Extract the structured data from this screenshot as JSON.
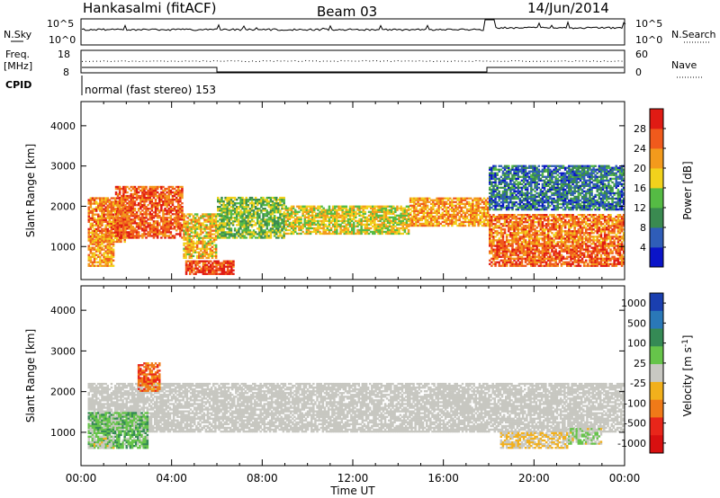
{
  "header": {
    "radar": "Hankasalmi (fitACF)",
    "beam": "Beam 03",
    "date": "14/Jun/2014"
  },
  "noise_panel": {
    "left_label": "N.Sky",
    "right_label": "N.Search",
    "left_ticks": [
      "10^5",
      "10^0"
    ],
    "right_ticks": [
      "10^5",
      "10^0"
    ]
  },
  "freq_panel": {
    "left_label_1": "Freq.",
    "left_label_2": "[MHz]",
    "right_label": "Nave",
    "left_ticks": [
      "18",
      "8"
    ],
    "right_ticks": [
      "60",
      "0"
    ]
  },
  "cpid": {
    "label": "CPID",
    "mode": "normal (fast stereo) 153"
  },
  "colors": {
    "power": [
      "#0a14c8",
      "#2f5db8",
      "#3a8a50",
      "#55bb44",
      "#f2d21c",
      "#f39a1c",
      "#f05a1c",
      "#e01b14"
    ],
    "velocity": [
      "#1a3fb0",
      "#2a78b8",
      "#358a55",
      "#66c44a",
      "#c8c8c2",
      "#f2b01c",
      "#f07a18",
      "#e8261a",
      "#d81010"
    ],
    "ground_scatter": "#c7c7c1"
  },
  "chart_data": [
    {
      "type": "heatmap",
      "panel": "power",
      "ylabel": "Slant Range [km]",
      "yticks": [
        "1000",
        "2000",
        "3000",
        "4000"
      ],
      "ylim": [
        180,
        4600
      ],
      "colorbar_label": "Power [dB]",
      "colorbar_ticks": [
        "4",
        "8",
        "12",
        "16",
        "20",
        "24",
        "28"
      ],
      "clim": [
        0,
        32
      ],
      "scatter_regions": [
        {
          "t_start": 0.3,
          "t_end": 2.0,
          "r_low": 1100,
          "r_high": 2200,
          "level": 24
        },
        {
          "t_start": 1.5,
          "t_end": 4.5,
          "r_low": 1200,
          "r_high": 2500,
          "level": 26
        },
        {
          "t_start": 0.3,
          "t_end": 1.5,
          "r_low": 500,
          "r_high": 1300,
          "level": 22
        },
        {
          "t_start": 4.5,
          "t_end": 6.0,
          "r_low": 700,
          "r_high": 1800,
          "level": 20
        },
        {
          "t_start": 4.6,
          "t_end": 6.8,
          "r_low": 300,
          "r_high": 650,
          "level": 28
        },
        {
          "t_start": 6.0,
          "t_end": 9.0,
          "r_low": 1200,
          "r_high": 2200,
          "level": 14
        },
        {
          "t_start": 9.0,
          "t_end": 14.5,
          "r_low": 1300,
          "r_high": 2000,
          "level": 18
        },
        {
          "t_start": 14.5,
          "t_end": 18.0,
          "r_low": 1500,
          "r_high": 2200,
          "level": 22
        },
        {
          "t_start": 18.0,
          "t_end": 24.0,
          "r_low": 1000,
          "r_high": 1800,
          "level": 24
        },
        {
          "t_start": 18.0,
          "t_end": 24.0,
          "r_low": 500,
          "r_high": 1000,
          "level": 26
        },
        {
          "t_start": 18.0,
          "t_end": 24.0,
          "r_low": 1900,
          "r_high": 3000,
          "level": 8
        }
      ]
    },
    {
      "type": "heatmap",
      "panel": "velocity",
      "ylabel": "Slant Range [km]",
      "yticks": [
        "1000",
        "2000",
        "3000",
        "4000"
      ],
      "ylim": [
        180,
        4600
      ],
      "colorbar_label": "Velocity [m s^-1]",
      "colorbar_ticks": [
        "1000",
        "500",
        "100",
        "25",
        "-25",
        "-100",
        "-500",
        "-1000"
      ],
      "clim": [
        -1200,
        1200
      ],
      "scatter_regions": [
        {
          "t_start": 0.3,
          "t_end": 24.0,
          "r_low": 1000,
          "r_high": 2200,
          "level": 0
        },
        {
          "t_start": 0.3,
          "t_end": 3.0,
          "r_low": 600,
          "r_high": 1500,
          "level": 300
        },
        {
          "t_start": 2.5,
          "t_end": 3.5,
          "r_low": 2000,
          "r_high": 2700,
          "level": -600
        },
        {
          "t_start": 0.3,
          "t_end": 1.5,
          "r_low": 600,
          "r_high": 900,
          "level": 80
        },
        {
          "t_start": 18.5,
          "t_end": 21.5,
          "r_low": 600,
          "r_high": 1000,
          "level": -150
        },
        {
          "t_start": 21.5,
          "t_end": 23.0,
          "r_low": 700,
          "r_high": 1100,
          "level": 80
        }
      ]
    }
  ],
  "xaxis": {
    "label": "Time UT",
    "ticks": [
      "00:00",
      "04:00",
      "08:00",
      "12:00",
      "16:00",
      "20:00",
      "00:00"
    ]
  }
}
